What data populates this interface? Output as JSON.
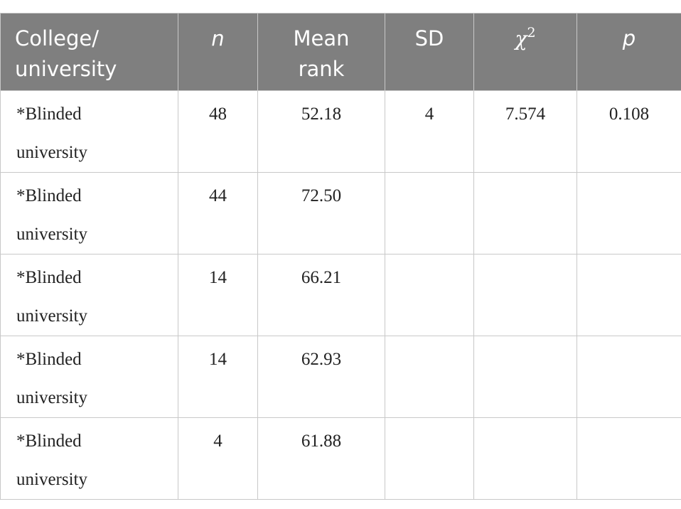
{
  "table": {
    "header": [
      "College/ university",
      "n",
      "Mean rank",
      "SD",
      {
        "base": "χ",
        "sup": "2"
      },
      "p"
    ],
    "rows": [
      [
        "*Blinded university",
        "48",
        "52.18",
        "4",
        "7.574",
        "0.108"
      ],
      [
        "*Blinded university",
        "44",
        "72.50",
        null,
        null,
        null
      ],
      [
        "*Blinded university",
        "14",
        "66.21",
        null,
        null,
        null
      ],
      [
        "*Blinded university",
        "14",
        "62.93",
        null,
        null,
        null
      ],
      [
        "*Blinded university",
        "4",
        "61.88",
        null,
        null,
        null
      ]
    ]
  }
}
